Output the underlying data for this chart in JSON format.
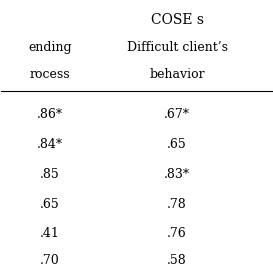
{
  "title_top": "COSE s",
  "col1_header_line1": "ending",
  "col1_header_line2": "rocess",
  "col2_header_line1": "Difficult client’s",
  "col2_header_line2": "behavior",
  "col1_values": [
    ".86*",
    ".84*",
    ".85",
    ".65",
    ".41",
    ".70"
  ],
  "col2_values": [
    ".67*",
    ".65",
    ".83*",
    ".78",
    ".76",
    ".58"
  ],
  "background_color": "#ffffff",
  "text_color": "#000000",
  "font_size": 9,
  "header_font_size": 9
}
